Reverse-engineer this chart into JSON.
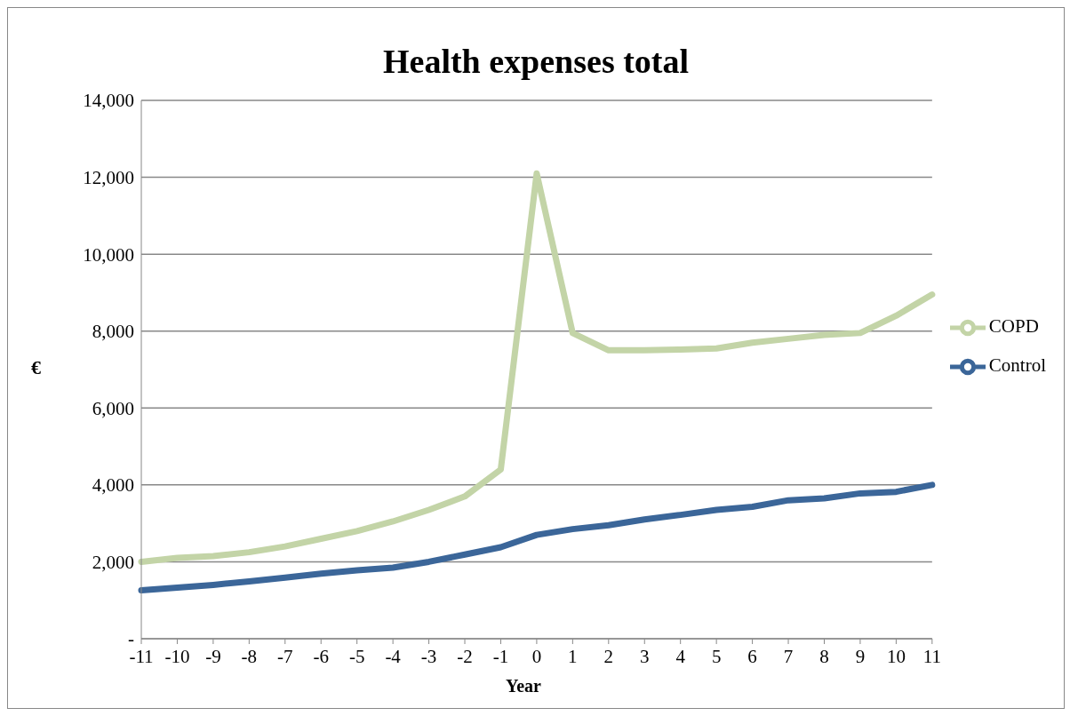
{
  "chart_data": {
    "type": "line",
    "title": "Health expenses total",
    "xlabel": "Year",
    "ylabel": "€",
    "categories": [
      "-11",
      "-10",
      "-9",
      "-8",
      "-7",
      "-6",
      "-5",
      "-4",
      "-3",
      "-2",
      "-1",
      "0",
      "1",
      "2",
      "3",
      "4",
      "5",
      "6",
      "7",
      "8",
      "9",
      "10",
      "11"
    ],
    "series": [
      {
        "name": "COPD",
        "color": "#c3d4a7",
        "values": [
          2000,
          2100,
          2150,
          2250,
          2400,
          2600,
          2800,
          3050,
          3350,
          3700,
          4400,
          12100,
          7950,
          7500,
          7500,
          7520,
          7550,
          7700,
          7800,
          7900,
          7950,
          8400,
          8950
        ]
      },
      {
        "name": "Control",
        "color": "#3b6699",
        "values": [
          1260,
          1330,
          1400,
          1490,
          1590,
          1690,
          1780,
          1850,
          2000,
          2190,
          2380,
          2700,
          2850,
          2950,
          3100,
          3220,
          3350,
          3430,
          3600,
          3650,
          3780,
          3820,
          4000
        ]
      }
    ],
    "ylim": [
      0,
      14000
    ],
    "yticks": [
      {
        "value": 0,
        "label": "-"
      },
      {
        "value": 2000,
        "label": "2,000"
      },
      {
        "value": 4000,
        "label": "4,000"
      },
      {
        "value": 6000,
        "label": "6,000"
      },
      {
        "value": 8000,
        "label": "8,000"
      },
      {
        "value": 10000,
        "label": "10,000"
      },
      {
        "value": 12000,
        "label": "12,000"
      },
      {
        "value": 14000,
        "label": "14,000"
      }
    ],
    "grid": "y",
    "legend": "right",
    "marker": "none",
    "line_style": "solid"
  }
}
